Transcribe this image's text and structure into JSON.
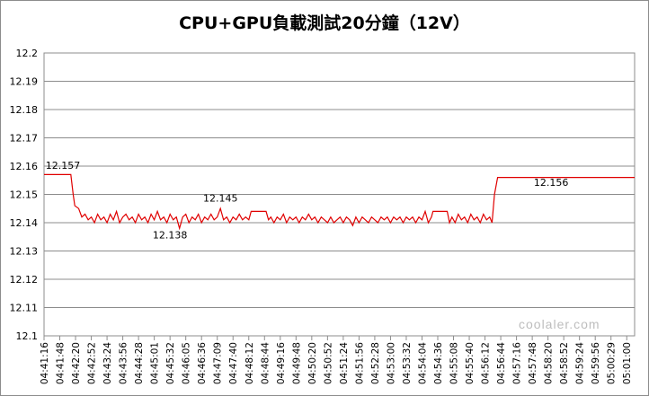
{
  "chart_data": {
    "type": "line",
    "title": "CPU+GPU負載測試20分鐘（12V）",
    "ylim": [
      12.1,
      12.2
    ],
    "yticks": [
      "12.2",
      "12.19",
      "12.18",
      "12.17",
      "12.16",
      "12.15",
      "12.14",
      "12.13",
      "12.12",
      "12.11",
      "12.1"
    ],
    "xticks": [
      "04:41:16",
      "04:41:48",
      "04:42:20",
      "04:42:52",
      "04:43:24",
      "04:43:56",
      "04:44:28",
      "04:45:01",
      "04:45:32",
      "04:46:05",
      "04:46:36",
      "04:47:09",
      "04:47:40",
      "04:48:12",
      "04:48:44",
      "04:49:16",
      "04:49:48",
      "04:50:20",
      "04:50:52",
      "04:51:24",
      "04:51:56",
      "04:52:28",
      "04:53:00",
      "04:53:32",
      "04:54:04",
      "04:54:36",
      "04:55:08",
      "04:55:40",
      "04:56:12",
      "04:56:44",
      "04:57:16",
      "04:57:48",
      "04:58:20",
      "04:58:52",
      "04:59:24",
      "04:59:56",
      "05:00:29",
      "05:01:00"
    ],
    "series": [
      {
        "color": "#e00000"
      }
    ],
    "points": [
      [
        0,
        12.157
      ],
      [
        1.7,
        12.157
      ],
      [
        1.85,
        12.15
      ],
      [
        1.95,
        12.146
      ],
      [
        2.2,
        12.145
      ],
      [
        2.4,
        12.142
      ],
      [
        2.6,
        12.143
      ],
      [
        2.8,
        12.141
      ],
      [
        3.0,
        12.142
      ],
      [
        3.2,
        12.14
      ],
      [
        3.4,
        12.143
      ],
      [
        3.6,
        12.141
      ],
      [
        3.8,
        12.142
      ],
      [
        4.0,
        12.14
      ],
      [
        4.2,
        12.143
      ],
      [
        4.4,
        12.141
      ],
      [
        4.6,
        12.144
      ],
      [
        4.8,
        12.14
      ],
      [
        5.0,
        12.142
      ],
      [
        5.2,
        12.143
      ],
      [
        5.4,
        12.141
      ],
      [
        5.6,
        12.142
      ],
      [
        5.8,
        12.14
      ],
      [
        6.0,
        12.143
      ],
      [
        6.2,
        12.141
      ],
      [
        6.4,
        12.142
      ],
      [
        6.6,
        12.14
      ],
      [
        6.8,
        12.143
      ],
      [
        7.0,
        12.141
      ],
      [
        7.2,
        12.144
      ],
      [
        7.4,
        12.141
      ],
      [
        7.6,
        12.142
      ],
      [
        7.8,
        12.14
      ],
      [
        8.0,
        12.143
      ],
      [
        8.2,
        12.141
      ],
      [
        8.4,
        12.142
      ],
      [
        8.6,
        12.138
      ],
      [
        8.8,
        12.142
      ],
      [
        9.0,
        12.143
      ],
      [
        9.2,
        12.14
      ],
      [
        9.4,
        12.142
      ],
      [
        9.6,
        12.141
      ],
      [
        9.8,
        12.143
      ],
      [
        10.0,
        12.14
      ],
      [
        10.2,
        12.142
      ],
      [
        10.4,
        12.141
      ],
      [
        10.6,
        12.143
      ],
      [
        10.8,
        12.141
      ],
      [
        11.0,
        12.142
      ],
      [
        11.2,
        12.145
      ],
      [
        11.4,
        12.141
      ],
      [
        11.6,
        12.142
      ],
      [
        11.8,
        12.14
      ],
      [
        12.0,
        12.142
      ],
      [
        12.2,
        12.141
      ],
      [
        12.4,
        12.143
      ],
      [
        12.6,
        12.141
      ],
      [
        12.8,
        12.142
      ],
      [
        13.0,
        12.141
      ],
      [
        13.15,
        12.144
      ],
      [
        14.1,
        12.144
      ],
      [
        14.25,
        12.141
      ],
      [
        14.4,
        12.142
      ],
      [
        14.6,
        12.14
      ],
      [
        14.8,
        12.142
      ],
      [
        15.0,
        12.141
      ],
      [
        15.2,
        12.143
      ],
      [
        15.4,
        12.14
      ],
      [
        15.6,
        12.142
      ],
      [
        15.8,
        12.141
      ],
      [
        16.0,
        12.142
      ],
      [
        16.2,
        12.14
      ],
      [
        16.4,
        12.142
      ],
      [
        16.6,
        12.141
      ],
      [
        16.8,
        12.143
      ],
      [
        17.0,
        12.141
      ],
      [
        17.2,
        12.142
      ],
      [
        17.4,
        12.14
      ],
      [
        17.6,
        12.142
      ],
      [
        17.8,
        12.141
      ],
      [
        18.0,
        12.14
      ],
      [
        18.2,
        12.142
      ],
      [
        18.4,
        12.14
      ],
      [
        18.6,
        12.141
      ],
      [
        18.8,
        12.142
      ],
      [
        19.0,
        12.14
      ],
      [
        19.2,
        12.142
      ],
      [
        19.4,
        12.141
      ],
      [
        19.6,
        12.139
      ],
      [
        19.8,
        12.142
      ],
      [
        20.0,
        12.14
      ],
      [
        20.2,
        12.142
      ],
      [
        20.4,
        12.141
      ],
      [
        20.6,
        12.14
      ],
      [
        20.8,
        12.142
      ],
      [
        21.0,
        12.141
      ],
      [
        21.2,
        12.14
      ],
      [
        21.4,
        12.142
      ],
      [
        21.6,
        12.141
      ],
      [
        21.8,
        12.142
      ],
      [
        22.0,
        12.14
      ],
      [
        22.2,
        12.142
      ],
      [
        22.4,
        12.141
      ],
      [
        22.6,
        12.142
      ],
      [
        22.8,
        12.14
      ],
      [
        23.0,
        12.142
      ],
      [
        23.2,
        12.141
      ],
      [
        23.4,
        12.142
      ],
      [
        23.6,
        12.14
      ],
      [
        23.8,
        12.142
      ],
      [
        24.0,
        12.141
      ],
      [
        24.2,
        12.144
      ],
      [
        24.4,
        12.14
      ],
      [
        24.6,
        12.142
      ],
      [
        24.7,
        12.144
      ],
      [
        25.6,
        12.144
      ],
      [
        25.75,
        12.14
      ],
      [
        25.9,
        12.142
      ],
      [
        26.1,
        12.14
      ],
      [
        26.3,
        12.143
      ],
      [
        26.5,
        12.141
      ],
      [
        26.7,
        12.142
      ],
      [
        26.9,
        12.14
      ],
      [
        27.1,
        12.143
      ],
      [
        27.3,
        12.141
      ],
      [
        27.5,
        12.142
      ],
      [
        27.7,
        12.14
      ],
      [
        27.9,
        12.143
      ],
      [
        28.1,
        12.141
      ],
      [
        28.3,
        12.142
      ],
      [
        28.45,
        12.14
      ],
      [
        28.6,
        12.15
      ],
      [
        28.8,
        12.156
      ],
      [
        37.5,
        12.156
      ]
    ],
    "annotations": [
      {
        "text": "12.157",
        "x": 1.2,
        "y": 12.159
      },
      {
        "text": "12.145",
        "x": 11.2,
        "y": 12.1475
      },
      {
        "text": "12.138",
        "x": 8.0,
        "y": 12.1345
      },
      {
        "text": "12.156",
        "x": 32.2,
        "y": 12.153
      }
    ],
    "grid": {
      "horizontal": true,
      "vertical": false
    },
    "legend": "none"
  },
  "watermark_text": "coolaler.com"
}
